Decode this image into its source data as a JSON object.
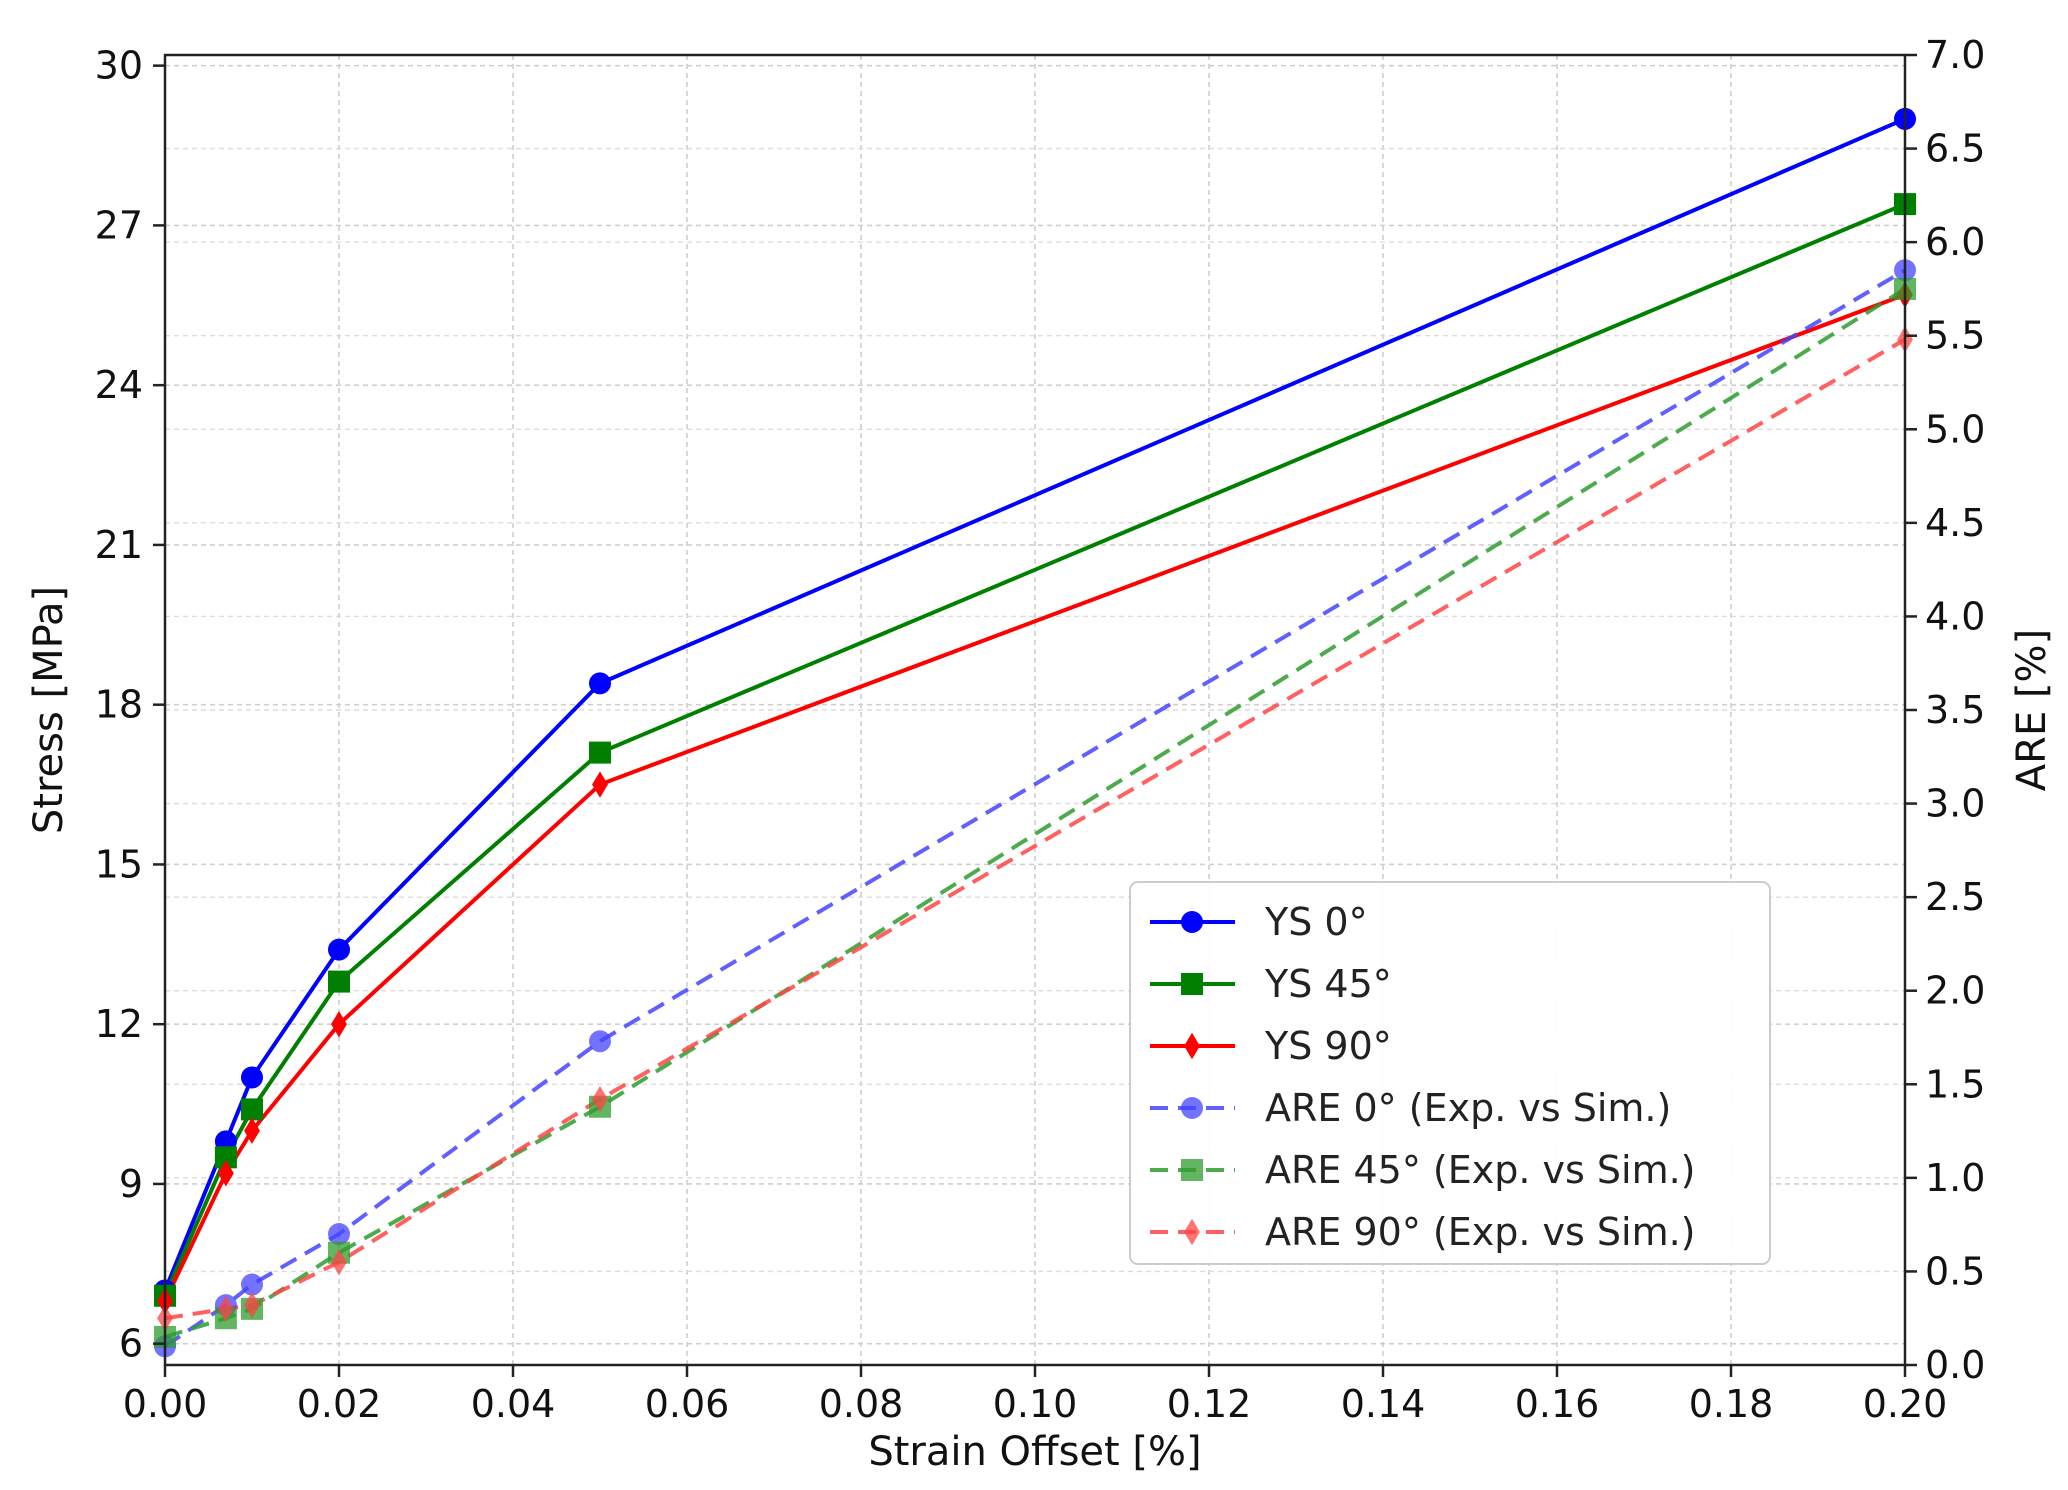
{
  "chart_data": {
    "type": "line",
    "xlabel": "Strain Offset [%]",
    "ylabel": "Stress [MPa]",
    "y2label": "ARE [%]",
    "x": [
      0.0,
      0.007,
      0.01,
      0.02,
      0.05,
      0.2
    ],
    "xlim": [
      0.0,
      0.2
    ],
    "ylim": [
      5.6,
      30.2
    ],
    "y2lim": [
      0.0,
      7.0
    ],
    "xticks": [
      "0.00",
      "0.02",
      "0.04",
      "0.06",
      "0.08",
      "0.10",
      "0.12",
      "0.14",
      "0.16",
      "0.18",
      "0.20"
    ],
    "yticks": [
      "6",
      "9",
      "12",
      "15",
      "18",
      "21",
      "24",
      "27",
      "30"
    ],
    "y2ticks": [
      "0.0",
      "0.5",
      "1.0",
      "1.5",
      "2.0",
      "2.5",
      "3.0",
      "3.5",
      "4.0",
      "4.5",
      "5.0",
      "5.5",
      "6.0",
      "6.5",
      "7.0"
    ],
    "grid": true,
    "legend_position": "lower-right",
    "series": [
      {
        "name": "YS 0°",
        "axis": "left",
        "values": [
          7.0,
          9.8,
          11.0,
          13.4,
          18.4,
          29.0
        ],
        "color": "#0000ff",
        "marker": "circle",
        "dashed": false
      },
      {
        "name": "YS 45°",
        "axis": "left",
        "values": [
          6.9,
          9.5,
          10.4,
          12.8,
          17.1,
          27.4
        ],
        "color": "#008000",
        "marker": "square",
        "dashed": false
      },
      {
        "name": "YS 90°",
        "axis": "left",
        "values": [
          6.8,
          9.2,
          10.0,
          12.0,
          16.5,
          25.7
        ],
        "color": "#ff0000",
        "marker": "diamond",
        "dashed": false
      },
      {
        "name": "ARE 0° (Exp. vs Sim.)",
        "axis": "right",
        "values": [
          0.1,
          0.32,
          0.43,
          0.7,
          1.73,
          5.85
        ],
        "color": "#4444ff",
        "marker": "circle",
        "dashed": true
      },
      {
        "name": "ARE 45° (Exp. vs Sim.)",
        "axis": "right",
        "values": [
          0.15,
          0.25,
          0.3,
          0.6,
          1.38,
          5.75
        ],
        "color": "#2e9c2e",
        "marker": "square",
        "dashed": true
      },
      {
        "name": "ARE 90° (Exp. vs Sim.)",
        "axis": "right",
        "values": [
          0.25,
          0.3,
          0.32,
          0.55,
          1.42,
          5.48
        ],
        "color": "#ff4444",
        "marker": "diamond",
        "dashed": true
      }
    ]
  }
}
